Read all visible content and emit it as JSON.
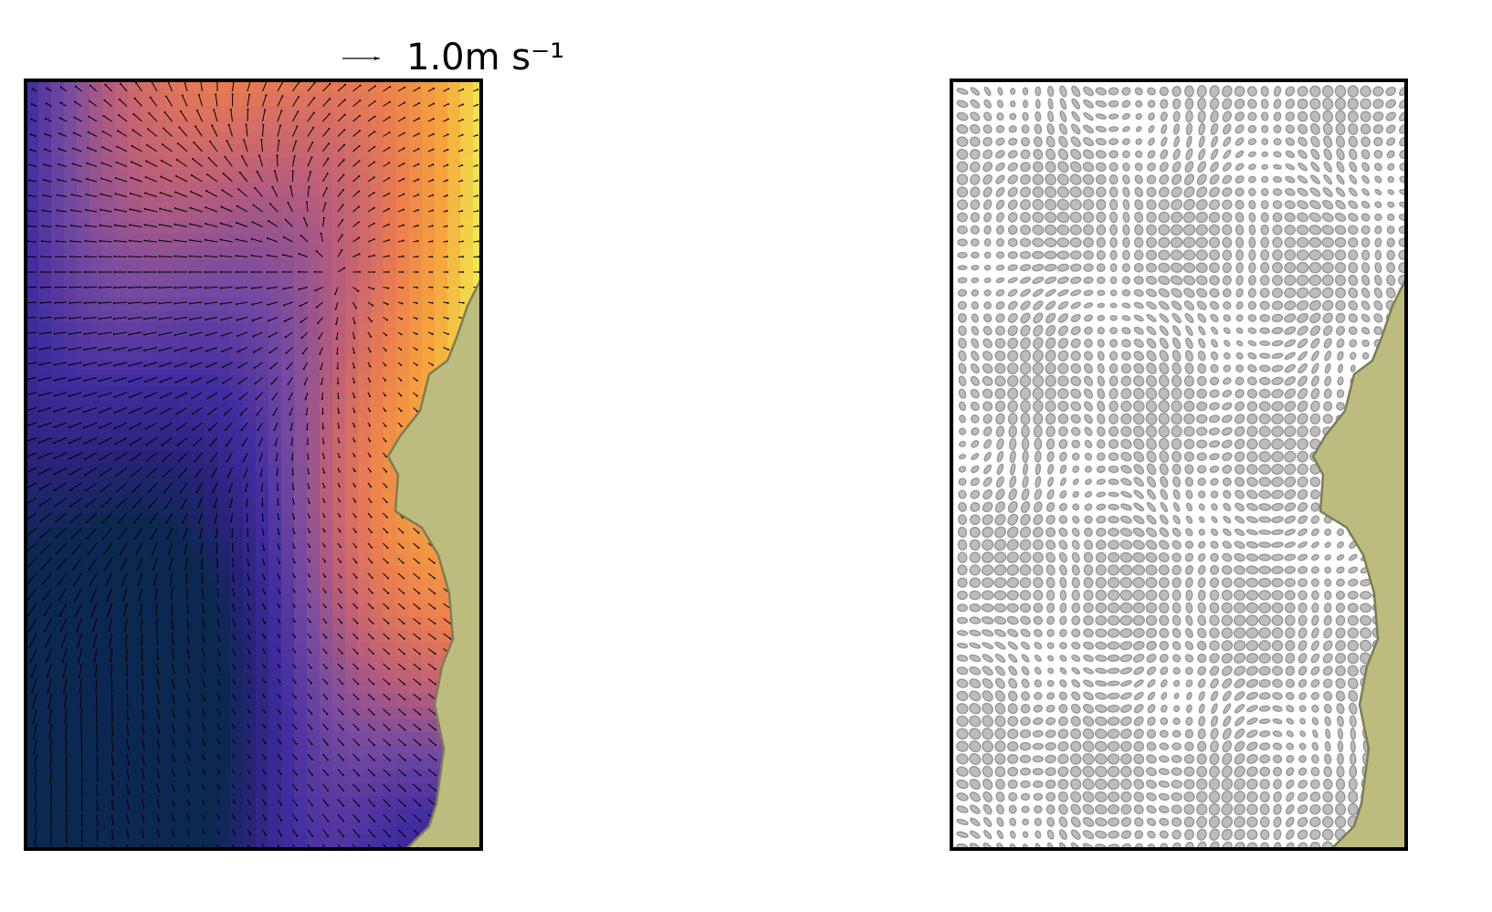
{
  "quiver_key": {
    "label": "1.0m s⁻¹"
  }
}
